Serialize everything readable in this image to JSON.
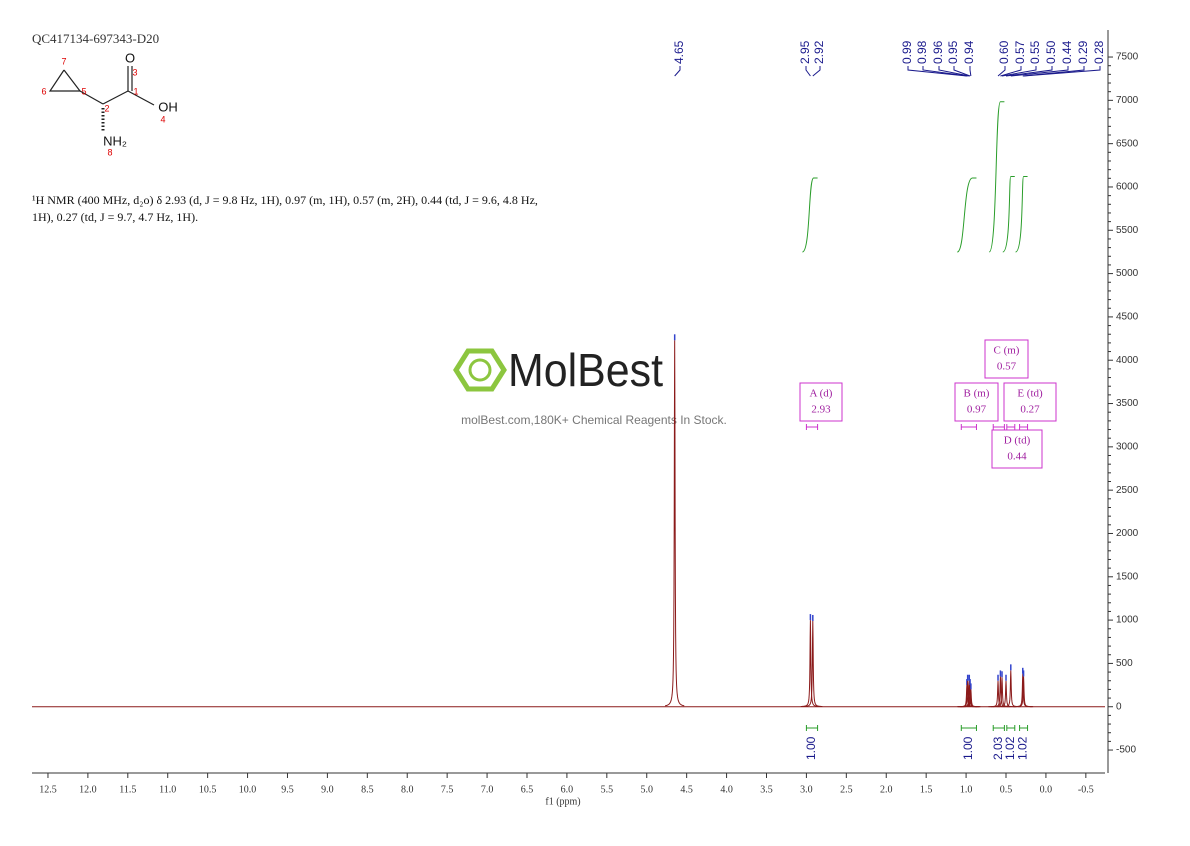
{
  "chart_data": {
    "type": "nmr",
    "title": "QC417134-697343-D20",
    "description": [
      "¹H NMR (400 MHz, d₂o) δ 2.93 (d, J = 9.8 Hz, 1H), 0.97 (m, 1H), 0.57 (m, 2H), 0.44 (td, J = 9.6, 4.8 Hz,",
      "1H), 0.27 (td, J = 9.7, 4.7 Hz, 1H)."
    ],
    "structure": {
      "atoms": [
        "O",
        "OH",
        "NH₂"
      ],
      "numbers": [
        "1",
        "2",
        "3",
        "4",
        "5",
        "6",
        "7",
        "8"
      ]
    },
    "watermark": {
      "brand": "MolBest",
      "tagline": "molBest.com,180K+ Chemical Reagents In Stock."
    },
    "xlabel": "f1 (ppm)",
    "xlim": [
      12.7,
      -0.74
    ],
    "ylim": [
      -765,
      7812
    ],
    "xticks": [
      12.5,
      {
        "value": 12,
        "label": "12.0"
      },
      11.5,
      {
        "value": 11,
        "label": "11.0"
      },
      10.5,
      {
        "value": 10,
        "label": "10.0"
      },
      9.5,
      {
        "value": 9,
        "label": "9.0"
      },
      8.5,
      {
        "value": 8,
        "label": "8.0"
      },
      7.5,
      {
        "value": 7,
        "label": "7.0"
      },
      6.5,
      {
        "value": 6,
        "label": "6.0"
      },
      5.5,
      {
        "value": 5,
        "label": "5.0"
      },
      4.5,
      {
        "value": 4,
        "label": "4.0"
      },
      3.5,
      {
        "value": 3,
        "label": "3.0"
      },
      2.5,
      {
        "value": 2,
        "label": "2.0"
      },
      1.5,
      {
        "value": 1,
        "label": "1.0"
      },
      0.5,
      {
        "value": 0,
        "label": "0.0"
      },
      -0.5
    ],
    "yticks": [
      -500,
      0,
      500,
      1000,
      1500,
      2000,
      2500,
      3000,
      3500,
      4000,
      4500,
      5000,
      5500,
      6000,
      6500,
      7000,
      7500
    ],
    "color": "#8b1a1a",
    "peaks": [
      {
        "x": 4.65,
        "label": "4.65",
        "y": 4230
      },
      {
        "x": 2.95,
        "label": "2.95",
        "y": 1000
      },
      {
        "x": 2.92,
        "label": "2.92",
        "y": 990
      },
      {
        "x": 0.99,
        "label": "0.99",
        "y": 250
      },
      {
        "x": 0.98,
        "label": "0.98",
        "y": 300
      },
      {
        "x": 0.96,
        "label": "0.96",
        "y": 300
      },
      {
        "x": 0.95,
        "label": "0.95",
        "y": 250
      },
      {
        "x": 0.94,
        "label": "0.94",
        "y": 200
      },
      {
        "x": 0.6,
        "label": "0.60",
        "y": 300
      },
      {
        "x": 0.57,
        "label": "0.57",
        "y": 350
      },
      {
        "x": 0.55,
        "label": "0.55",
        "y": 340
      },
      {
        "x": 0.5,
        "label": "0.50",
        "y": 300
      },
      {
        "x": 0.44,
        "label": "0.44",
        "y": 420
      },
      {
        "x": 0.29,
        "label": "0.29",
        "y": 380
      },
      {
        "x": 0.28,
        "label": "0.28",
        "y": 350
      }
    ],
    "integrals": [
      {
        "start": 3.0,
        "end": 2.86,
        "value": 1,
        "label": "1.00"
      },
      {
        "start": 1.06,
        "end": 0.87,
        "value": 1,
        "label": "1.00"
      },
      {
        "start": 0.66,
        "end": 0.52,
        "value": 2.03,
        "label": "2.03"
      },
      {
        "start": 0.49,
        "end": 0.39,
        "value": 1.02,
        "label": "1.02"
      },
      {
        "start": 0.33,
        "end": 0.23,
        "value": 1.02,
        "label": "1.02"
      }
    ],
    "multiplets": [
      {
        "label": "A (d)",
        "shift": "2.93"
      },
      {
        "label": "B (m)",
        "shift": "0.97"
      },
      {
        "label": "C (m)",
        "shift": "0.57"
      },
      {
        "label": "D (td)",
        "shift": "0.44"
      },
      {
        "label": "E (td)",
        "shift": "0.27"
      }
    ]
  }
}
